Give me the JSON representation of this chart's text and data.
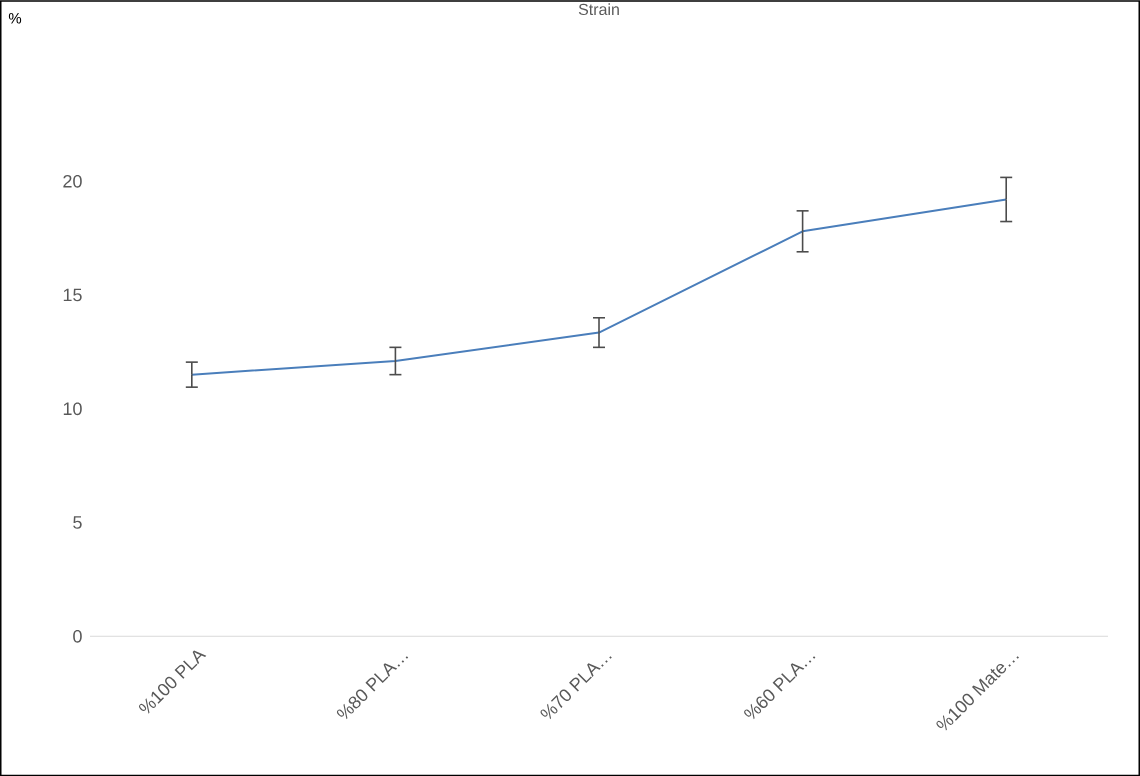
{
  "chart_data": {
    "type": "line",
    "title": "Strain",
    "annotations": [
      "%"
    ],
    "categories": [
      "%100 PLA",
      "%80 PLA…",
      "%70 PLA…",
      "%60 PLA…",
      "%100 Mate…"
    ],
    "values": [
      11.5,
      12.1,
      13.35,
      17.8,
      19.2
    ],
    "errors": [
      0.55,
      0.6,
      0.65,
      0.9,
      0.97
    ],
    "color": "#4a7ebb",
    "marker": "none",
    "ylim": [
      0,
      20
    ],
    "yticks": [
      0,
      5,
      10,
      15,
      20
    ]
  }
}
